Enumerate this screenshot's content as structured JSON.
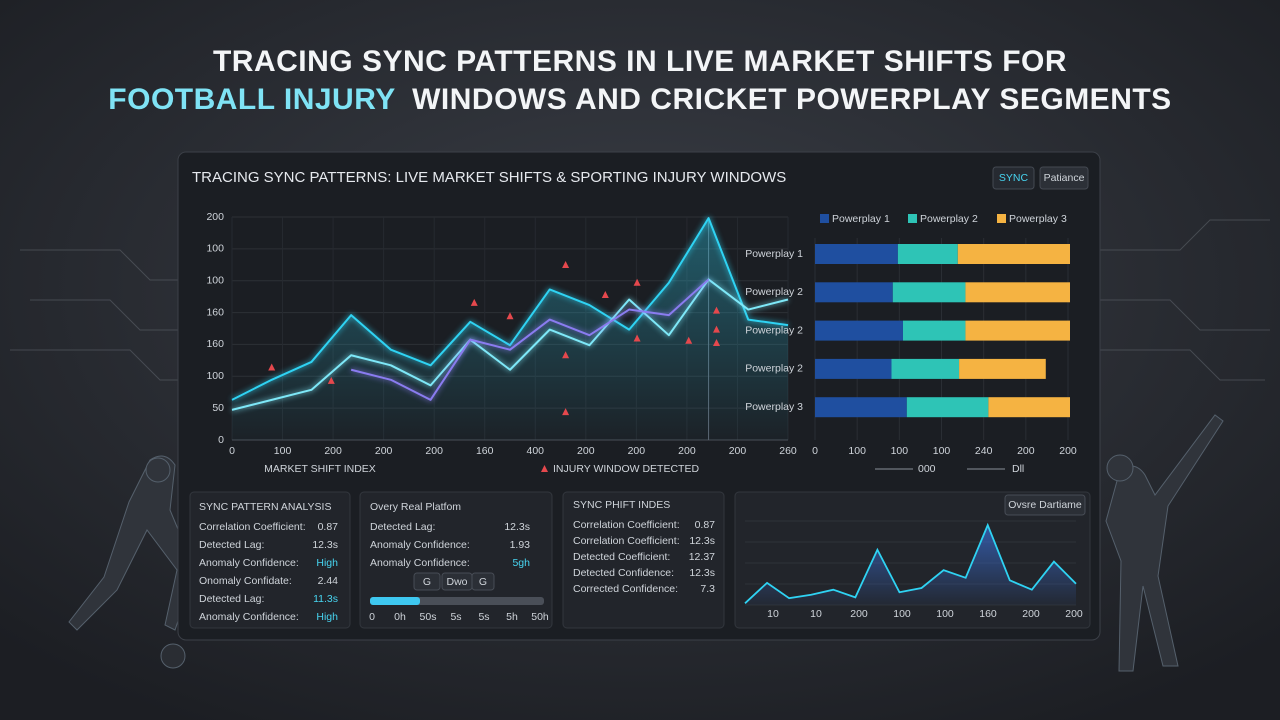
{
  "header": {
    "title_line1": "TRACING SYNC PATTERNS IN LIVE MARKET SHIFTS FOR",
    "title_highlight": "FOOTBALL INJURY",
    "title_line2_rest": "WINDOWS AND CRICKET POWERPLAY SEGMENTS"
  },
  "panel": {
    "title": "TRACING SYNC PATTERNS: LIVE MARKET SHIFTS & SPORTING INJURY WINDOWS",
    "buttons": [
      "SYNC",
      "Patiance"
    ]
  },
  "main_chart": {
    "type": "line",
    "y_labels": [
      "0",
      "50",
      "100",
      "160",
      "160",
      "100",
      "100",
      "200"
    ],
    "x_labels": [
      "0",
      "100",
      "200",
      "200",
      "200",
      "160",
      "400",
      "200",
      "200",
      "200",
      "200",
      "260"
    ],
    "x_axis_label": "MARKET SHIFT INDEX",
    "marker_legend": "INJURY WINDOW DETECTED",
    "xlim": [
      0,
      14
    ],
    "ylim": [
      0,
      200
    ],
    "series": [
      {
        "color": "#2fd3f3",
        "values": [
          36,
          54,
          70,
          112,
          81,
          67,
          106,
          85,
          135,
          121,
          99,
          141,
          199,
          108,
          103
        ]
      },
      {
        "color": "#7ee8f8",
        "values": [
          27,
          36,
          45,
          76,
          67,
          49,
          90,
          63,
          99,
          85,
          126,
          94,
          144,
          117,
          126
        ]
      },
      {
        "color": "#8a7cf0",
        "values": [
          null,
          null,
          null,
          63,
          54,
          36,
          90,
          81,
          108,
          94,
          117,
          112,
          144,
          null,
          null
        ]
      }
    ],
    "markers": {
      "color": "#e5484d",
      "x": [
        1.0,
        2.5,
        6.1,
        7.0,
        8.4,
        8.4,
        8.4,
        9.4,
        10.2,
        10.2,
        11.5,
        12.2,
        12.2,
        12.2
      ],
      "values": [
        65,
        53,
        123,
        111,
        157,
        76,
        25,
        130,
        141,
        91,
        89,
        116,
        99,
        87
      ]
    }
  },
  "bar_chart": {
    "type": "bar",
    "orientation": "horizontal",
    "categories": [
      "Powerplay 1",
      "Powerplay 2",
      "Powerplay 2",
      "Powerplay 2",
      "Powerplay 3"
    ],
    "series": [
      {
        "name": "Powerplay 1",
        "color": "#1f4fa0",
        "values": [
          65,
          61,
          69,
          60,
          72
        ]
      },
      {
        "name": "Powerplay 2",
        "color": "#2ec4b6",
        "values": [
          47,
          57,
          49,
          53,
          64
        ]
      },
      {
        "name": "Powerplay 3",
        "color": "#f5b342",
        "values": [
          88,
          82,
          82,
          68,
          64
        ]
      }
    ],
    "xlim": [
      0,
      200
    ],
    "x_labels": [
      "0",
      "100",
      "100",
      "100",
      "240",
      "200",
      "200"
    ],
    "legend_bottom": [
      "000",
      "Dll"
    ]
  },
  "sync_pattern_analysis": {
    "title": "SYNC PATTERN ANALYSIS",
    "rows": [
      {
        "label": "Correlation Coefficient:",
        "value": "0.87"
      },
      {
        "label": "Detected Lag:",
        "value": "12.3s"
      },
      {
        "label": "Anomaly Confidence:",
        "value": "High",
        "accent": true
      },
      {
        "label": "Onomaly Confidate:",
        "value": "2.44"
      },
      {
        "label": "Detected Lag:",
        "value": "11.3s",
        "accent": true
      },
      {
        "label": "Anomaly Confidence:",
        "value": "High",
        "accent": true
      }
    ]
  },
  "overy_panel": {
    "title": "Overy Real Platfom",
    "rows": [
      {
        "label": "Detected Lag:",
        "value": "12.3s"
      },
      {
        "label": "Anomaly Confidence:",
        "value": "1.93"
      },
      {
        "label": "Anomaly Confidence:",
        "value": "5gh",
        "accent": true
      }
    ],
    "buttons": [
      "G",
      "Dwo",
      "G"
    ],
    "slider_labels": [
      "0",
      "0h",
      "50s",
      "5s",
      "5s",
      "5h",
      "50h"
    ]
  },
  "sync_shift_index": {
    "title": "SYNC PHIFT INDES",
    "rows": [
      {
        "label": "Correlation Coefficient:",
        "value": "0.87"
      },
      {
        "label": "Correlation Coefficient:",
        "value": "12.3s"
      },
      {
        "label": "Detected Coefficient:",
        "value": "12.37"
      },
      {
        "label": "Detected Confidence:",
        "value": "12.3s"
      },
      {
        "label": "Corrected Confidence:",
        "value": "7.3"
      }
    ]
  },
  "mini_chart": {
    "type": "area",
    "button": "Ovsre Dartiame",
    "color": "#2fd3f3",
    "ylim": [
      0,
      100
    ],
    "values": [
      2,
      26,
      8,
      12,
      18,
      9,
      65,
      15,
      20,
      41,
      32,
      94,
      29,
      18,
      51,
      25
    ],
    "x_labels": [
      "10",
      "10",
      "200",
      "100",
      "100",
      "160",
      "200",
      "200"
    ]
  }
}
